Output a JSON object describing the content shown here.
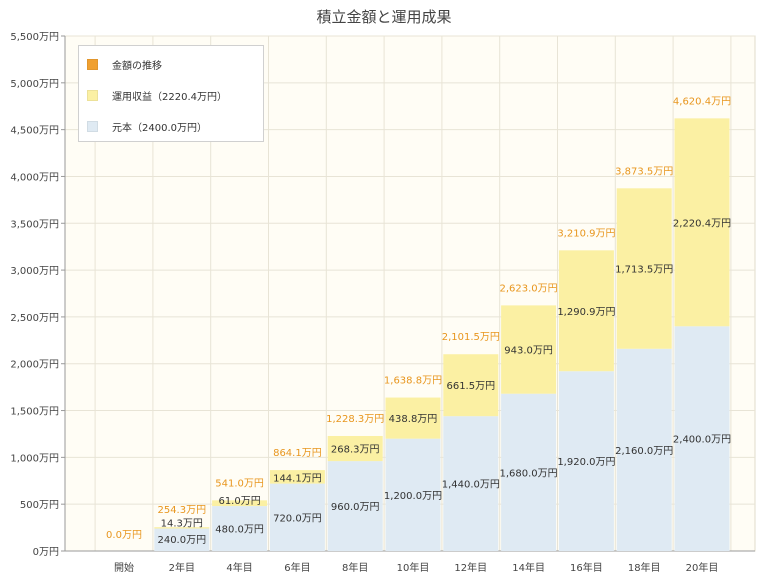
{
  "chart_data": {
    "type": "bar",
    "title": "積立金額と運用成果",
    "categories": [
      "開始",
      "2年目",
      "4年目",
      "6年目",
      "8年目",
      "10年目",
      "12年目",
      "14年目",
      "16年目",
      "18年目",
      "20年目"
    ],
    "series": [
      {
        "name": "元本（2400.0万円）",
        "color": "#dfeaf3",
        "values": [
          0,
          240.0,
          480.0,
          720.0,
          960.0,
          1200.0,
          1440.0,
          1680.0,
          1920.0,
          2160.0,
          2400.0
        ],
        "labels": [
          "",
          "240.0万円",
          "480.0万円",
          "720.0万円",
          "960.0万円",
          "1,200.0万円",
          "1,440.0万円",
          "1,680.0万円",
          "1,920.0万円",
          "2,160.0万円",
          "2,400.0万円"
        ]
      },
      {
        "name": "運用収益（2220.4万円）",
        "color": "#fbf0a3",
        "values": [
          0,
          14.3,
          61.0,
          144.1,
          268.3,
          438.8,
          661.5,
          943.0,
          1290.9,
          1713.5,
          2220.4
        ],
        "labels": [
          "",
          "14.3万円",
          "61.0万円",
          "144.1万円",
          "268.3万円",
          "438.8万円",
          "661.5万円",
          "943.0万円",
          "1,290.9万円",
          "1,713.5万円",
          "2,220.4万円"
        ]
      }
    ],
    "totals": {
      "name": "金額の推移",
      "color": "#f0a030",
      "values": [
        0.0,
        254.3,
        541.0,
        864.1,
        1228.3,
        1638.8,
        2101.5,
        2623.0,
        3210.9,
        3873.5,
        4620.4
      ],
      "labels": [
        "0.0万円",
        "254.3万円",
        "541.0万円",
        "864.1万円",
        "1,228.3万円",
        "1,638.8万円",
        "2,101.5万円",
        "2,623.0万円",
        "3,210.9万円",
        "3,873.5万円",
        "4,620.4万円"
      ]
    },
    "ylim": [
      0,
      5500
    ],
    "yticks": [
      0,
      500,
      1000,
      1500,
      2000,
      2500,
      3000,
      3500,
      4000,
      4500,
      5000,
      5500
    ],
    "ytick_labels": [
      "0万円",
      "500万円",
      "1,000万円",
      "1,500万円",
      "2,000万円",
      "2,500万円",
      "3,000万円",
      "3,500万円",
      "4,000万円",
      "4,500万円",
      "5,000万円",
      "5,500万円"
    ],
    "grid": true,
    "legend_position": "top-left",
    "colors": {
      "plot_background": "#fffdf5",
      "grid": "#e8e4d6",
      "axis": "#999999",
      "total_label": "#e8961e"
    }
  },
  "legend": {
    "items": [
      {
        "label": "金額の推移",
        "color": "#f0a030"
      },
      {
        "label": "運用収益（2220.4万円）",
        "color": "#fbf0a3"
      },
      {
        "label": "元本（2400.0万円）",
        "color": "#dfeaf3"
      }
    ]
  }
}
